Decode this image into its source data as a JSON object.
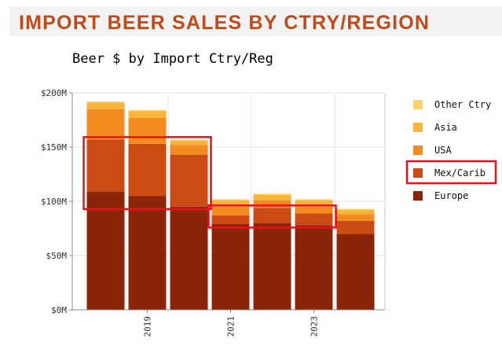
{
  "header": {
    "title": "IMPORT BEER SALES BY CTRY/REGION"
  },
  "chart_data": {
    "type": "bar",
    "stacked": true,
    "title": "Beer $ by Import Ctry/Reg",
    "xlabel": "",
    "ylabel": "",
    "x": [
      2018,
      2019,
      2020,
      2021,
      2022,
      2023,
      2024
    ],
    "x_tick_labels": [
      "2019",
      "2021",
      "2023"
    ],
    "x_tick_values": [
      2019,
      2021,
      2023
    ],
    "ylim": [
      0,
      200
    ],
    "y_ticks": [
      0,
      50,
      100,
      150,
      200
    ],
    "y_tick_labels": [
      "$0M",
      "$50M",
      "$100M",
      "$150M",
      "$200M"
    ],
    "grid": true,
    "legend_position": "right",
    "series": [
      {
        "name": "Europe",
        "color": "#8b2508",
        "values": [
          109,
          105,
          95,
          79,
          80,
          78,
          70
        ]
      },
      {
        "name": "Mex/Carib",
        "color": "#cc4a14",
        "values": [
          48,
          48,
          48,
          8,
          14,
          11,
          12
        ]
      },
      {
        "name": "USA",
        "color": "#f28b20",
        "values": [
          28,
          24,
          9,
          8,
          7,
          6,
          6
        ]
      },
      {
        "name": "Asia",
        "color": "#f9b43a",
        "values": [
          6,
          6,
          4,
          6,
          5,
          6,
          4
        ]
      },
      {
        "name": "Other Ctry",
        "color": "#fcd56a",
        "values": [
          1,
          1,
          1,
          1,
          1,
          1,
          1
        ]
      }
    ],
    "legend_order": [
      "Other Ctry",
      "Asia",
      "USA",
      "Mex/Carib",
      "Europe"
    ],
    "highlights": [
      {
        "series": "Mex/Carib",
        "x_from": 2018,
        "x_to": 2020
      },
      {
        "series": "Mex/Carib",
        "x_from": 2021,
        "x_to": 2023
      },
      {
        "legend_item": "Mex/Carib"
      }
    ],
    "highlight_color": "#e8101a"
  }
}
